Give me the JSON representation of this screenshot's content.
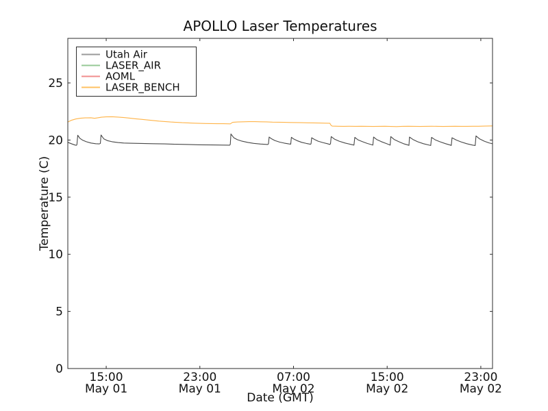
{
  "chart_data": {
    "type": "line",
    "title": "APOLLO Laser Temperatures",
    "xlabel": "Date (GMT)",
    "ylabel": "Temperature (C)",
    "grid": false,
    "legend_position": "upper left",
    "x_unit": "hours since May 01 00:00 GMT",
    "xlim": [
      11.72,
      48.0
    ],
    "ylim": [
      0,
      28.9
    ],
    "yticks": [
      0,
      5,
      10,
      15,
      20,
      25
    ],
    "xticks": [
      {
        "value": 15,
        "time": "15:00",
        "date": "May 01"
      },
      {
        "value": 23,
        "time": "23:00",
        "date": "May 01"
      },
      {
        "value": 31,
        "time": "07:00",
        "date": "May 02"
      },
      {
        "value": 39,
        "time": "15:00",
        "date": "May 02"
      },
      {
        "value": 47,
        "time": "23:00",
        "date": "May 02"
      }
    ],
    "series": [
      {
        "name": "Utah Air",
        "color": "#474747",
        "legend_color": "#9a9a9a",
        "points": [
          [
            11.72,
            19.8
          ],
          [
            12.1,
            19.65
          ],
          [
            12.35,
            19.56
          ],
          [
            12.45,
            19.54
          ],
          [
            12.5,
            19.6
          ],
          [
            12.57,
            20.42
          ],
          [
            12.75,
            20.15
          ],
          [
            13.0,
            19.98
          ],
          [
            13.3,
            19.85
          ],
          [
            13.7,
            19.74
          ],
          [
            14.1,
            19.68
          ],
          [
            14.4,
            19.66
          ],
          [
            14.5,
            19.7
          ],
          [
            14.56,
            20.44
          ],
          [
            14.8,
            20.1
          ],
          [
            15.1,
            19.95
          ],
          [
            15.5,
            19.85
          ],
          [
            16.0,
            19.78
          ],
          [
            16.5,
            19.74
          ],
          [
            17.0,
            19.72
          ],
          [
            18.0,
            19.7
          ],
          [
            19.0,
            19.68
          ],
          [
            20.0,
            19.66
          ],
          [
            21.0,
            19.63
          ],
          [
            22.0,
            19.61
          ],
          [
            23.0,
            19.58
          ],
          [
            24.0,
            19.57
          ],
          [
            25.0,
            19.56
          ],
          [
            25.55,
            19.55
          ],
          [
            25.6,
            19.62
          ],
          [
            25.65,
            20.53
          ],
          [
            25.9,
            20.2
          ],
          [
            26.2,
            20.03
          ],
          [
            26.6,
            19.9
          ],
          [
            27.1,
            19.79
          ],
          [
            27.6,
            19.71
          ],
          [
            28.2,
            19.65
          ],
          [
            28.8,
            19.61
          ],
          [
            28.86,
            19.66
          ],
          [
            28.92,
            20.26
          ],
          [
            29.1,
            20.12
          ],
          [
            29.4,
            19.96
          ],
          [
            29.8,
            19.82
          ],
          [
            30.2,
            19.73
          ],
          [
            30.6,
            19.66
          ],
          [
            30.76,
            19.64
          ],
          [
            30.82,
            20.24
          ],
          [
            31.0,
            20.1
          ],
          [
            31.3,
            19.95
          ],
          [
            31.7,
            19.8
          ],
          [
            32.1,
            19.7
          ],
          [
            32.45,
            19.63
          ],
          [
            32.5,
            19.68
          ],
          [
            32.55,
            20.2
          ],
          [
            32.8,
            20.05
          ],
          [
            33.1,
            19.9
          ],
          [
            33.5,
            19.78
          ],
          [
            33.9,
            19.68
          ],
          [
            34.1,
            19.62
          ],
          [
            34.16,
            19.68
          ],
          [
            34.22,
            20.3
          ],
          [
            34.5,
            20.08
          ],
          [
            34.9,
            19.9
          ],
          [
            35.4,
            19.74
          ],
          [
            35.9,
            19.62
          ],
          [
            36.16,
            19.56
          ],
          [
            36.24,
            20.23
          ],
          [
            36.5,
            20.02
          ],
          [
            36.9,
            19.85
          ],
          [
            37.3,
            19.7
          ],
          [
            37.7,
            19.58
          ],
          [
            37.78,
            19.56
          ],
          [
            37.84,
            20.26
          ],
          [
            38.1,
            20.05
          ],
          [
            38.5,
            19.86
          ],
          [
            38.9,
            19.7
          ],
          [
            39.2,
            19.58
          ],
          [
            39.26,
            19.55
          ],
          [
            39.31,
            20.3
          ],
          [
            39.6,
            20.05
          ],
          [
            40.0,
            19.85
          ],
          [
            40.4,
            19.68
          ],
          [
            40.8,
            19.56
          ],
          [
            40.86,
            19.53
          ],
          [
            40.91,
            20.26
          ],
          [
            41.2,
            20.05
          ],
          [
            41.6,
            19.85
          ],
          [
            42.1,
            19.68
          ],
          [
            42.6,
            19.55
          ],
          [
            42.72,
            19.52
          ],
          [
            42.79,
            20.23
          ],
          [
            43.1,
            20.02
          ],
          [
            43.5,
            19.85
          ],
          [
            44.0,
            19.68
          ],
          [
            44.4,
            19.56
          ],
          [
            44.48,
            19.53
          ],
          [
            44.54,
            20.2
          ],
          [
            44.9,
            20.0
          ],
          [
            45.3,
            19.84
          ],
          [
            45.8,
            19.68
          ],
          [
            46.3,
            19.56
          ],
          [
            46.52,
            19.52
          ],
          [
            46.59,
            20.36
          ],
          [
            46.9,
            20.1
          ],
          [
            47.3,
            19.9
          ],
          [
            47.7,
            19.75
          ],
          [
            48.0,
            19.67
          ]
        ]
      },
      {
        "name": "LASER_AIR",
        "color": "#96c896",
        "legend_color": "#96c896",
        "points": []
      },
      {
        "name": "AOML",
        "color": "#f08c8c",
        "legend_color": "#f08c8c",
        "points": []
      },
      {
        "name": "LASER_BENCH",
        "color": "#ffb347",
        "legend_color": "#ffc061",
        "points": [
          [
            11.72,
            21.58
          ],
          [
            12.0,
            21.72
          ],
          [
            12.4,
            21.84
          ],
          [
            12.8,
            21.91
          ],
          [
            13.2,
            21.94
          ],
          [
            13.7,
            21.95
          ],
          [
            14.0,
            21.9
          ],
          [
            14.2,
            21.93
          ],
          [
            14.6,
            22.0
          ],
          [
            15.0,
            22.03
          ],
          [
            15.5,
            22.04
          ],
          [
            16.0,
            22.01
          ],
          [
            16.5,
            21.97
          ],
          [
            17.0,
            21.92
          ],
          [
            17.5,
            21.86
          ],
          [
            18.0,
            21.81
          ],
          [
            18.5,
            21.76
          ],
          [
            19.0,
            21.71
          ],
          [
            19.5,
            21.66
          ],
          [
            20.0,
            21.62
          ],
          [
            20.5,
            21.58
          ],
          [
            21.0,
            21.55
          ],
          [
            21.5,
            21.52
          ],
          [
            22.0,
            21.5
          ],
          [
            22.5,
            21.48
          ],
          [
            23.0,
            21.46
          ],
          [
            23.5,
            21.45
          ],
          [
            24.0,
            21.44
          ],
          [
            24.5,
            21.43
          ],
          [
            25.0,
            21.43
          ],
          [
            25.6,
            21.42
          ],
          [
            25.8,
            21.55
          ],
          [
            26.2,
            21.58
          ],
          [
            26.7,
            21.6
          ],
          [
            27.2,
            21.61
          ],
          [
            27.7,
            21.61
          ],
          [
            28.2,
            21.6
          ],
          [
            28.7,
            21.59
          ],
          [
            29.2,
            21.57
          ],
          [
            29.7,
            21.56
          ],
          [
            30.2,
            21.55
          ],
          [
            30.7,
            21.54
          ],
          [
            31.2,
            21.53
          ],
          [
            31.7,
            21.52
          ],
          [
            32.2,
            21.51
          ],
          [
            32.7,
            21.5
          ],
          [
            33.2,
            21.49
          ],
          [
            33.7,
            21.48
          ],
          [
            34.1,
            21.47
          ],
          [
            34.2,
            21.3
          ],
          [
            34.3,
            21.22
          ],
          [
            34.8,
            21.21
          ],
          [
            35.3,
            21.2
          ],
          [
            35.8,
            21.21
          ],
          [
            36.3,
            21.2
          ],
          [
            36.8,
            21.21
          ],
          [
            37.3,
            21.2
          ],
          [
            37.8,
            21.19
          ],
          [
            38.3,
            21.2
          ],
          [
            38.8,
            21.21
          ],
          [
            39.3,
            21.19
          ],
          [
            39.8,
            21.18
          ],
          [
            40.3,
            21.2
          ],
          [
            40.8,
            21.21
          ],
          [
            41.3,
            21.2
          ],
          [
            41.8,
            21.19
          ],
          [
            42.3,
            21.2
          ],
          [
            42.8,
            21.21
          ],
          [
            43.3,
            21.2
          ],
          [
            43.8,
            21.19
          ],
          [
            44.3,
            21.2
          ],
          [
            44.8,
            21.21
          ],
          [
            45.3,
            21.2
          ],
          [
            45.8,
            21.2
          ],
          [
            46.3,
            21.21
          ],
          [
            46.8,
            21.21
          ],
          [
            47.3,
            21.22
          ],
          [
            48.0,
            21.24
          ]
        ]
      }
    ]
  }
}
